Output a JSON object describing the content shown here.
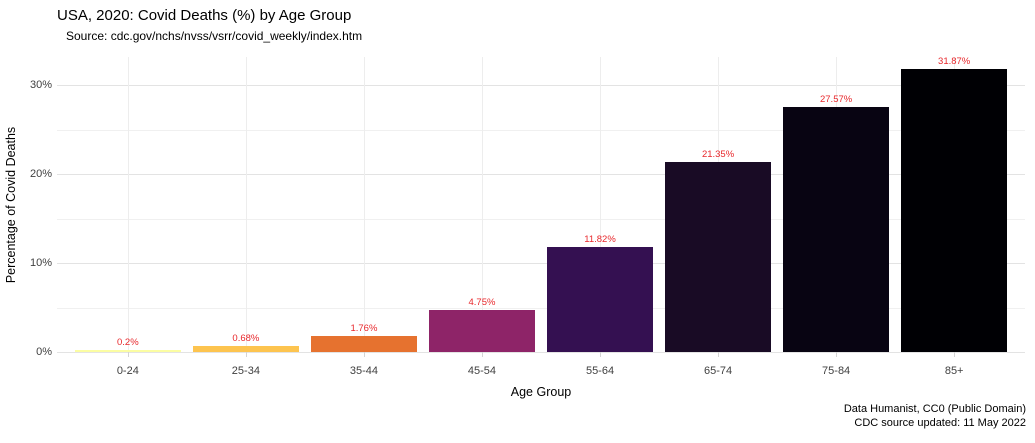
{
  "page": {
    "background": "#ffffff"
  },
  "header": {
    "title": "USA, 2020: Covid Deaths (%) by Age Group",
    "subtitle": "Source: cdc.gov/nchs/nvss/vsrr/covid_weekly/index.htm"
  },
  "footer": {
    "caption_line1": "Data Humanist, CC0 (Public Domain)",
    "caption_line2": "CDC source updated: 11 May 2022"
  },
  "chart_data": {
    "type": "bar",
    "title": "USA, 2020: Covid Deaths (%) by Age Group",
    "subtitle": "Source: cdc.gov/nchs/nvss/vsrr/covid_weekly/index.htm",
    "xlabel": "Age Group",
    "ylabel": "Percentage of Covid Deaths",
    "categories": [
      "0-24",
      "25-34",
      "35-44",
      "45-54",
      "55-64",
      "65-74",
      "75-84",
      "85+"
    ],
    "values": [
      0.2,
      0.68,
      1.76,
      4.75,
      11.82,
      21.35,
      27.57,
      31.87
    ],
    "value_labels": [
      "0.2%",
      "0.68%",
      "1.76%",
      "4.75%",
      "11.82%",
      "21.35%",
      "27.57%",
      "31.87%"
    ],
    "bar_colors": [
      "#fbfda3",
      "#fdc44f",
      "#e6722f",
      "#8e2468",
      "#341051",
      "#190b25",
      "#080412",
      "#000004"
    ],
    "value_label_color": "#e8282c",
    "yticks": [
      {
        "value": 0,
        "label": "0%"
      },
      {
        "value": 10,
        "label": "10%"
      },
      {
        "value": 20,
        "label": "20%"
      },
      {
        "value": 30,
        "label": "30%"
      }
    ],
    "minor_gridlines": [
      5,
      15,
      25
    ],
    "ylim": [
      0,
      33.2
    ],
    "grid": true,
    "legend": "none",
    "caption": [
      "Data Humanist, CC0 (Public Domain)",
      "CDC source updated: 11 May 2022"
    ]
  }
}
